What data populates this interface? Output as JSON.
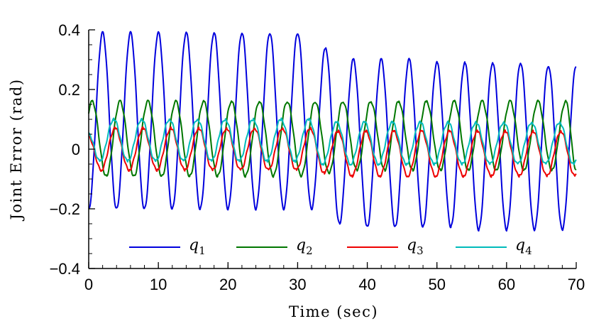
{
  "chart_data": {
    "type": "line",
    "title": "",
    "xlabel": "Time (sec)",
    "ylabel": "Joint Error (rad)",
    "xlim": [
      0,
      70
    ],
    "ylim": [
      -0.4,
      0.4
    ],
    "xticks": [
      0,
      10,
      20,
      30,
      40,
      50,
      60,
      70
    ],
    "xtick_labels": [
      "0",
      "10",
      "20",
      "30",
      "40",
      "50",
      "60",
      "70"
    ],
    "yticks": [
      -0.4,
      -0.2,
      0,
      0.2,
      0.4
    ],
    "ytick_labels": [
      "−0.4",
      "−0.2",
      "0",
      "0.2",
      "0.4"
    ],
    "grid": false,
    "legend_position": "bottom",
    "oscillation_period_sec": 4,
    "series": [
      {
        "name": "q",
        "subscript": "1",
        "color": "#0000dd",
        "peak_times": [
          2,
          6,
          10,
          14,
          18,
          22,
          26,
          30,
          34,
          38,
          42,
          46,
          50,
          54,
          58,
          62,
          66,
          70
        ],
        "peak_values": [
          0.39,
          0.39,
          0.39,
          0.39,
          0.39,
          0.39,
          0.39,
          0.39,
          0.34,
          0.3,
          0.3,
          0.3,
          0.29,
          0.29,
          0.29,
          0.29,
          0.28,
          0.28
        ],
        "trough_times": [
          0,
          4,
          8,
          12,
          16,
          20,
          24,
          28,
          32,
          36,
          40,
          44,
          48,
          52,
          56,
          60,
          64,
          68
        ],
        "trough_values": [
          -0.2,
          -0.2,
          -0.2,
          -0.2,
          -0.2,
          -0.2,
          -0.2,
          -0.2,
          -0.2,
          -0.25,
          -0.26,
          -0.26,
          -0.26,
          -0.26,
          -0.27,
          -0.27,
          -0.27,
          -0.27
        ]
      },
      {
        "name": "q",
        "subscript": "2",
        "color": "#007700",
        "peak_times": [
          0.5,
          4.5,
          8.5,
          12.5,
          16.5,
          20.5,
          24.5,
          28.5,
          32.5,
          36.5,
          40.5,
          44.5,
          48.5,
          52.5,
          56.5,
          60.5,
          64.5,
          68.5
        ],
        "peak_values": [
          0.16,
          0.16,
          0.16,
          0.16,
          0.16,
          0.16,
          0.16,
          0.16,
          0.16,
          0.16,
          0.16,
          0.16,
          0.16,
          0.16,
          0.16,
          0.16,
          0.16,
          0.16
        ],
        "trough_times": [
          2.5,
          6.5,
          10.5,
          14.5,
          18.5,
          22.5,
          26.5,
          30.5,
          34.5,
          38.5,
          42.5,
          46.5,
          50.5,
          54.5,
          58.5,
          62.5,
          66.5,
          70
        ],
        "trough_values": [
          -0.09,
          -0.09,
          -0.09,
          -0.09,
          -0.09,
          -0.09,
          -0.09,
          -0.09,
          -0.08,
          -0.07,
          -0.07,
          -0.07,
          -0.07,
          -0.07,
          -0.07,
          -0.07,
          -0.07,
          -0.07
        ]
      },
      {
        "name": "q",
        "subscript": "3",
        "color": "#ee0000",
        "peak_times": [
          0,
          3.8,
          7.8,
          11.8,
          15.8,
          19.8,
          23.8,
          27.8,
          31.8,
          35.8,
          39.8,
          43.8,
          47.8,
          51.8,
          55.8,
          59.8,
          63.8,
          67.8
        ],
        "peak_values": [
          0.04,
          0.07,
          0.07,
          0.07,
          0.07,
          0.07,
          0.07,
          0.07,
          0.07,
          0.06,
          0.06,
          0.06,
          0.06,
          0.06,
          0.06,
          0.06,
          0.06,
          0.06
        ],
        "trough_times": [
          1.8,
          5.8,
          9.8,
          13.8,
          17.8,
          21.8,
          25.8,
          29.8,
          33.8,
          37.8,
          41.8,
          45.8,
          49.8,
          53.8,
          57.8,
          61.8,
          65.8,
          69.8
        ],
        "trough_values": [
          -0.07,
          -0.07,
          -0.07,
          -0.07,
          -0.07,
          -0.07,
          -0.07,
          -0.07,
          -0.08,
          -0.09,
          -0.09,
          -0.09,
          -0.09,
          -0.09,
          -0.09,
          -0.09,
          -0.09,
          -0.09
        ]
      },
      {
        "name": "q",
        "subscript": "4",
        "color": "#00bbbb",
        "peak_times": [
          0,
          3.6,
          7.6,
          11.6,
          15.6,
          19.6,
          23.6,
          27.6,
          31.6,
          35.6,
          39.6,
          43.6,
          47.6,
          51.6,
          55.6,
          59.6,
          63.6,
          67.6
        ],
        "peak_values": [
          0.05,
          0.1,
          0.1,
          0.1,
          0.1,
          0.1,
          0.1,
          0.1,
          0.1,
          0.09,
          0.09,
          0.09,
          0.09,
          0.09,
          0.09,
          0.09,
          0.09,
          0.09
        ],
        "trough_times": [
          1.6,
          5.6,
          9.6,
          13.6,
          17.6,
          21.6,
          25.6,
          29.6,
          33.6,
          37.6,
          41.6,
          45.6,
          49.6,
          53.6,
          57.6,
          61.6,
          65.6,
          69.6
        ],
        "trough_values": [
          -0.04,
          -0.04,
          -0.04,
          -0.04,
          -0.04,
          -0.04,
          -0.04,
          -0.04,
          -0.05,
          -0.05,
          -0.05,
          -0.05,
          -0.05,
          -0.05,
          -0.05,
          -0.05,
          -0.05,
          -0.05
        ]
      }
    ]
  }
}
